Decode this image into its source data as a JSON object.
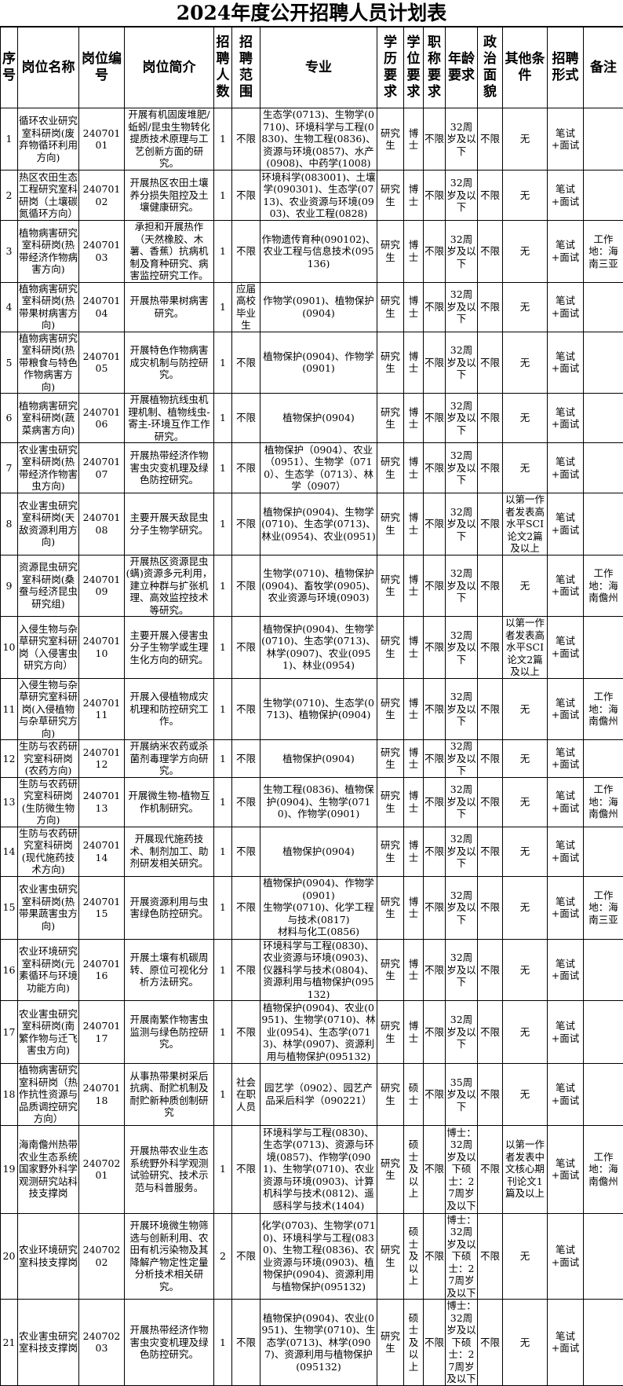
{
  "title": "2024年度公开招聘人员计划表",
  "headers": [
    "序号",
    "岗位名称",
    "岗位编号",
    "岗位简介",
    "招聘人数",
    "招聘范围",
    "专业",
    "学历要求",
    "学位要求",
    "职称要求",
    "年龄要求",
    "政治面貌",
    "其他条件",
    "招聘形式",
    "备注"
  ],
  "rows": [
    {
      "no": "1",
      "name": "循环农业研究室科研岗(废弃物循环利用方向)",
      "code": "24070101",
      "intro": "开展有机固废堆肥/蚯蚓/昆虫生物转化提质技术原理与工艺创新方面的研究。",
      "count": "1",
      "scope": "不限",
      "major": "生态学(0713)、生物学(0710)、环境科学与工程(0830)、生物工程(0836)、资源与环境(0857)、水产(0908)、中药学(1008)",
      "edu": "研究生",
      "degree": "博士",
      "title": "不限",
      "age": "32周岁及以下",
      "politics": "不限",
      "other": "无",
      "form": "笔试+面试",
      "note": ""
    },
    {
      "no": "2",
      "name": "热区农田生态工程研究室科研岗（土壤碳氮循环方向）",
      "code": "24070102",
      "intro": "开展热区农田土壤养分损失阻控及土壤健康研究。",
      "count": "1",
      "scope": "不限",
      "major": "环境科学(083001)、土壤学(090301)、生态学(0713)、农业资源与环境(0903)、农业工程(0828)",
      "edu": "研究生",
      "degree": "博士",
      "title": "不限",
      "age": "32周岁及以下",
      "politics": "不限",
      "other": "无",
      "form": "笔试+面试",
      "note": ""
    },
    {
      "no": "3",
      "name": "植物病害研究室科研岗(热带经济作物病害方向)",
      "code": "24070103",
      "intro": "承担和开展热作（天然橡胶、木薯、香蕉）抗病机制及育种研究、病害监控研究工作。",
      "count": "1",
      "scope": "不限",
      "major": "作物遗传育种(090102)、农业工程与信息技术(095136)",
      "edu": "研究生",
      "degree": "博士",
      "title": "不限",
      "age": "32周岁及以下",
      "politics": "不限",
      "other": "无",
      "form": "笔试+面试",
      "note": "工作地：海南三亚"
    },
    {
      "no": "4",
      "name": "植物病害研究室科研岗(热带果树病害方向)",
      "code": "24070104",
      "intro": "开展热带果树病害研究。",
      "count": "1",
      "scope": "应届高校毕业生",
      "major": "作物学(0901)、植物保护(0904)",
      "edu": "研究生",
      "degree": "博士",
      "title": "不限",
      "age": "32周岁及以下",
      "politics": "不限",
      "other": "无",
      "form": "笔试+面试",
      "note": ""
    },
    {
      "no": "5",
      "name": "植物病害研究室科研岗(热带粮食与特色作物病害方向)",
      "code": "24070105",
      "intro": "开展特色作物病害成灾机制与防控研究。",
      "count": "1",
      "scope": "不限",
      "major": "植物保护(0904)、作物学(0901)",
      "edu": "研究生",
      "degree": "博士",
      "title": "不限",
      "age": "32周岁及以下",
      "politics": "不限",
      "other": "无",
      "form": "笔试+面试",
      "note": ""
    },
    {
      "no": "6",
      "name": "植物病害研究室科研岗(蔬菜病害方向)",
      "code": "24070106",
      "intro": "开展植物抗线虫机理机制、植物线虫-寄主-环境互作工作研究。",
      "count": "1",
      "scope": "不限",
      "major": "植物保护(0904)",
      "edu": "研究生",
      "degree": "博士",
      "title": "不限",
      "age": "32周岁及以下",
      "politics": "不限",
      "other": "无",
      "form": "笔试+面试",
      "note": ""
    },
    {
      "no": "7",
      "name": "农业害虫研究室科研岗(热带经济作物害虫方向)",
      "code": "24070107",
      "intro": "开展热带经济作物害虫灾变机理及绿色防控研究。",
      "count": "1",
      "scope": "不限",
      "major": "植物保护（0904）、农业（0951）、生物学（0710）、生态学（0713）、林学（0907）",
      "edu": "研究生",
      "degree": "博士",
      "title": "不限",
      "age": "32周岁及以下",
      "politics": "不限",
      "other": "无",
      "form": "笔试+面试",
      "note": ""
    },
    {
      "no": "8",
      "name": "农业害虫研究室科研岗(天敌资源利用方向)",
      "code": "24070108",
      "intro": "主要开展天敌昆虫分子生物学研究。",
      "count": "1",
      "scope": "不限",
      "major": "植物保护(0904)、生物学(0710)、生态学(0713)、林业(0954)、农业(0951)",
      "edu": "研究生",
      "degree": "博士",
      "title": "不限",
      "age": "32周岁及以下",
      "politics": "不限",
      "other": "以第一作者发表高水平SCI论文2篇及以上",
      "form": "笔试+面试",
      "note": ""
    },
    {
      "no": "9",
      "name": "资源昆虫研究室科研岗(桑蚕与经济昆虫研究组)",
      "code": "24070109",
      "intro": "开展热区资源昆虫(螨)资源多元利用，建立种群与扩张机理、高效监控技术等研究。",
      "count": "1",
      "scope": "不限",
      "major": "生物学(0710)、植物保护(0904)、畜牧学(0905)、农业资源与环境(0903)",
      "edu": "研究生",
      "degree": "博士",
      "title": "不限",
      "age": "32周岁及以下",
      "politics": "不限",
      "other": "无",
      "form": "笔试+面试",
      "note": "工作地：海南儋州"
    },
    {
      "no": "10",
      "name": "入侵生物与杂草研究室科研岗（入侵害虫研究方向）",
      "code": "24070110",
      "intro": "主要开展入侵害虫分子生物学或生理生化方向的研究。",
      "count": "1",
      "scope": "不限",
      "major": "植物保护(0904)、生物学(0710)、生态学(0713)、林学(0907)、农业(0951)、林业(0954)",
      "edu": "研究生",
      "degree": "博士",
      "title": "不限",
      "age": "32周岁及以下",
      "politics": "不限",
      "other": "以第一作者发表高水平SCI论文2篇及以上",
      "form": "笔试+面试",
      "note": ""
    },
    {
      "no": "11",
      "name": "入侵生物与杂草研究室科研岗(入侵植物与杂草研究方向)",
      "code": "24070111",
      "intro": "开展入侵植物成灾机理和防控研究工作。",
      "count": "1",
      "scope": "不限",
      "major": "生物学(0710)、生态学(0713)、植物保护(0904)",
      "edu": "研究生",
      "degree": "博士",
      "title": "不限",
      "age": "32周岁及以下",
      "politics": "不限",
      "other": "无",
      "form": "笔试+面试",
      "note": "工作地：海南儋州"
    },
    {
      "no": "12",
      "name": "生防与农药研究室科研岗(农药方向)",
      "code": "24070112",
      "intro": "开展纳米农药或杀菌剂毒理学方向研究。",
      "count": "1",
      "scope": "不限",
      "major": "植物保护(0904)",
      "edu": "研究生",
      "degree": "博士",
      "title": "不限",
      "age": "32周岁及以下",
      "politics": "不限",
      "other": "无",
      "form": "笔试+面试",
      "note": ""
    },
    {
      "no": "13",
      "name": "生防与农药研究室科研岗(生防微生物方向)",
      "code": "24070113",
      "intro": "开展微生物-植物互作机制研究。",
      "count": "1",
      "scope": "不限",
      "major": "生物工程(0836)、植物保护(0904)、生物学(0710)、作物学(0901)",
      "edu": "研究生",
      "degree": "博士",
      "title": "不限",
      "age": "32周岁及以下",
      "politics": "不限",
      "other": "无",
      "form": "笔试+面试",
      "note": "工作地：海南儋州"
    },
    {
      "no": "14",
      "name": "生防与农药研究室科研岗(现代施药技术方向)",
      "code": "24070114",
      "intro": "开展现代施药技术、制剂加工、助剂研发相关研究。",
      "count": "1",
      "scope": "不限",
      "major": "植物保护(0904)",
      "edu": "研究生",
      "degree": "博士",
      "title": "不限",
      "age": "32周岁及以下",
      "politics": "不限",
      "other": "无",
      "form": "笔试+面试",
      "note": ""
    },
    {
      "no": "15",
      "name": "农业害虫研究室科研岗(热带果蔬害虫方向)",
      "code": "24070115",
      "intro": "开展资源利用与虫害绿色防控研究。",
      "count": "1",
      "scope": "不限",
      "major": "植物保护(0904)、作物学(0901)\n生物学(0710)、化学工程与技术(0817)\n材料与化工(0856)",
      "edu": "研究生",
      "degree": "博士",
      "title": "不限",
      "age": "32周岁及以下",
      "politics": "不限",
      "other": "无",
      "form": "笔试+面试",
      "note": "工作地：海南三亚"
    },
    {
      "no": "16",
      "name": "农业环境研究室科研岗(元素循环与环境功能方向)",
      "code": "24070116",
      "intro": "开展土壤有机碳周转、原位可视化分析方法研究。",
      "count": "1",
      "scope": "不限",
      "major": "环境科学与工程(0830)、农业资源与环境(0903)、仪器科学与技术(0804)、资源利用与植物保护(095132)",
      "edu": "研究生",
      "degree": "博士",
      "title": "不限",
      "age": "32周岁及以下",
      "politics": "不限",
      "other": "无",
      "form": "笔试+面试",
      "note": ""
    },
    {
      "no": "17",
      "name": "农业害虫研究室科研岗(南繁作物与迁飞害虫方向)",
      "code": "24070117",
      "intro": "开展南繁作物害虫监测与绿色防控研究。",
      "count": "1",
      "scope": "不限",
      "major": "植物保护(0904)、农业(0951)、生物学(0710)、林业(0954)、生态学(0713)、林学(0907)、资源利用与植物保护(095132)",
      "edu": "研究生",
      "degree": "博士",
      "title": "不限",
      "age": "32周岁及以下",
      "politics": "不限",
      "other": "无",
      "form": "笔试+面试",
      "note": ""
    },
    {
      "no": "18",
      "name": "植物病害研究室科研岗（热作抗性资源与品质调控研究方向）",
      "code": "24070118",
      "intro": "从事热带果树采后抗病、耐贮机制及耐贮新种质创制研究",
      "count": "1",
      "scope": "社会在职人员",
      "major": "园艺学（0902）、园艺产品采后科学（090221）",
      "edu": "研究生",
      "degree": "硕士",
      "title": "不限",
      "age": "35周岁及以下",
      "politics": "不限",
      "other": "无",
      "form": "笔试+面试",
      "note": ""
    },
    {
      "no": "19",
      "name": "海南儋州热带农业生态系统国家野外科学观测研究站科技支撑岗",
      "code": "24070201",
      "intro": "开展热带农业生态系统野外科学观测试验研究、技术示范与科普服务。",
      "count": "1",
      "scope": "不限",
      "major": "环境科学与工程(0830)、生态学(0713)、资源与环境(0857)、作物学(0901)、生物学(0710)、农业资源与环境(0903)、计算机科学与技术(0812)、遥感科学与技术(1404)",
      "edu": "研究生",
      "degree": "硕士及以上",
      "title": "不限",
      "age": "博士：32周岁及以下硕士：27周岁及以下",
      "politics": "不限",
      "other": "以第一作者发表中文核心期刊论文1篇及以上",
      "form": "笔试+面试",
      "note": "工作地：海南儋州"
    },
    {
      "no": "20",
      "name": "农业环境研究室科技支撑岗",
      "code": "24070202",
      "intro": "开展环境微生物筛选与创新利用、农田有机污染物及其降解产物定性定量分析技术相关研究。",
      "count": "2",
      "scope": "不限",
      "major": "化学(0703)、生物学(0710)、环境科学与工程(0830)、生物工程(0836)、农业资源与环境(0903)、植物保护(0904)、资源利用与植物保护(095132)",
      "edu": "研究生",
      "degree": "硕士及以上",
      "title": "不限",
      "age": "博士：32周岁及以下硕士：27周岁及以下",
      "politics": "不限",
      "other": "无",
      "form": "笔试+面试",
      "note": ""
    },
    {
      "no": "21",
      "name": "农业害虫研究室科技支撑岗",
      "code": "24070203",
      "intro": "开展热带经济作物害虫灾变机理及绿色防控研究。",
      "count": "1",
      "scope": "不限",
      "major": "植物保护(0904)、农业(0951)、生物学(0710)、生态学(0713)、林学(0907)、资源利用与植物保护(095132)",
      "edu": "研究生",
      "degree": "硕士及以上",
      "title": "不限",
      "age": "博士：32周岁及以下硕士：27周岁及以下",
      "politics": "不限",
      "other": "无",
      "form": "笔试+面试",
      "note": ""
    }
  ]
}
